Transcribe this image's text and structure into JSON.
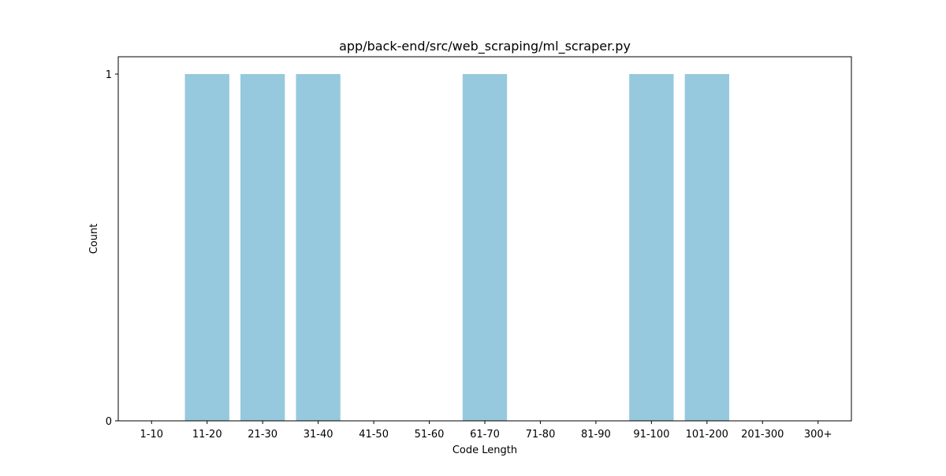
{
  "chart_data": {
    "type": "bar",
    "title": "app/back-end/src/web_scraping/ml_scraper.py",
    "xlabel": "Code Length",
    "ylabel": "Count",
    "categories": [
      "1-10",
      "11-20",
      "21-30",
      "31-40",
      "41-50",
      "51-60",
      "61-70",
      "71-80",
      "81-90",
      "91-100",
      "101-200",
      "201-300",
      "300+"
    ],
    "values": [
      0,
      1,
      1,
      1,
      0,
      0,
      1,
      0,
      0,
      1,
      1,
      0,
      0
    ],
    "yticks": [
      0,
      1
    ],
    "ylim": [
      0,
      1.05
    ],
    "grid": false,
    "bar_color": "#96c9dd"
  }
}
